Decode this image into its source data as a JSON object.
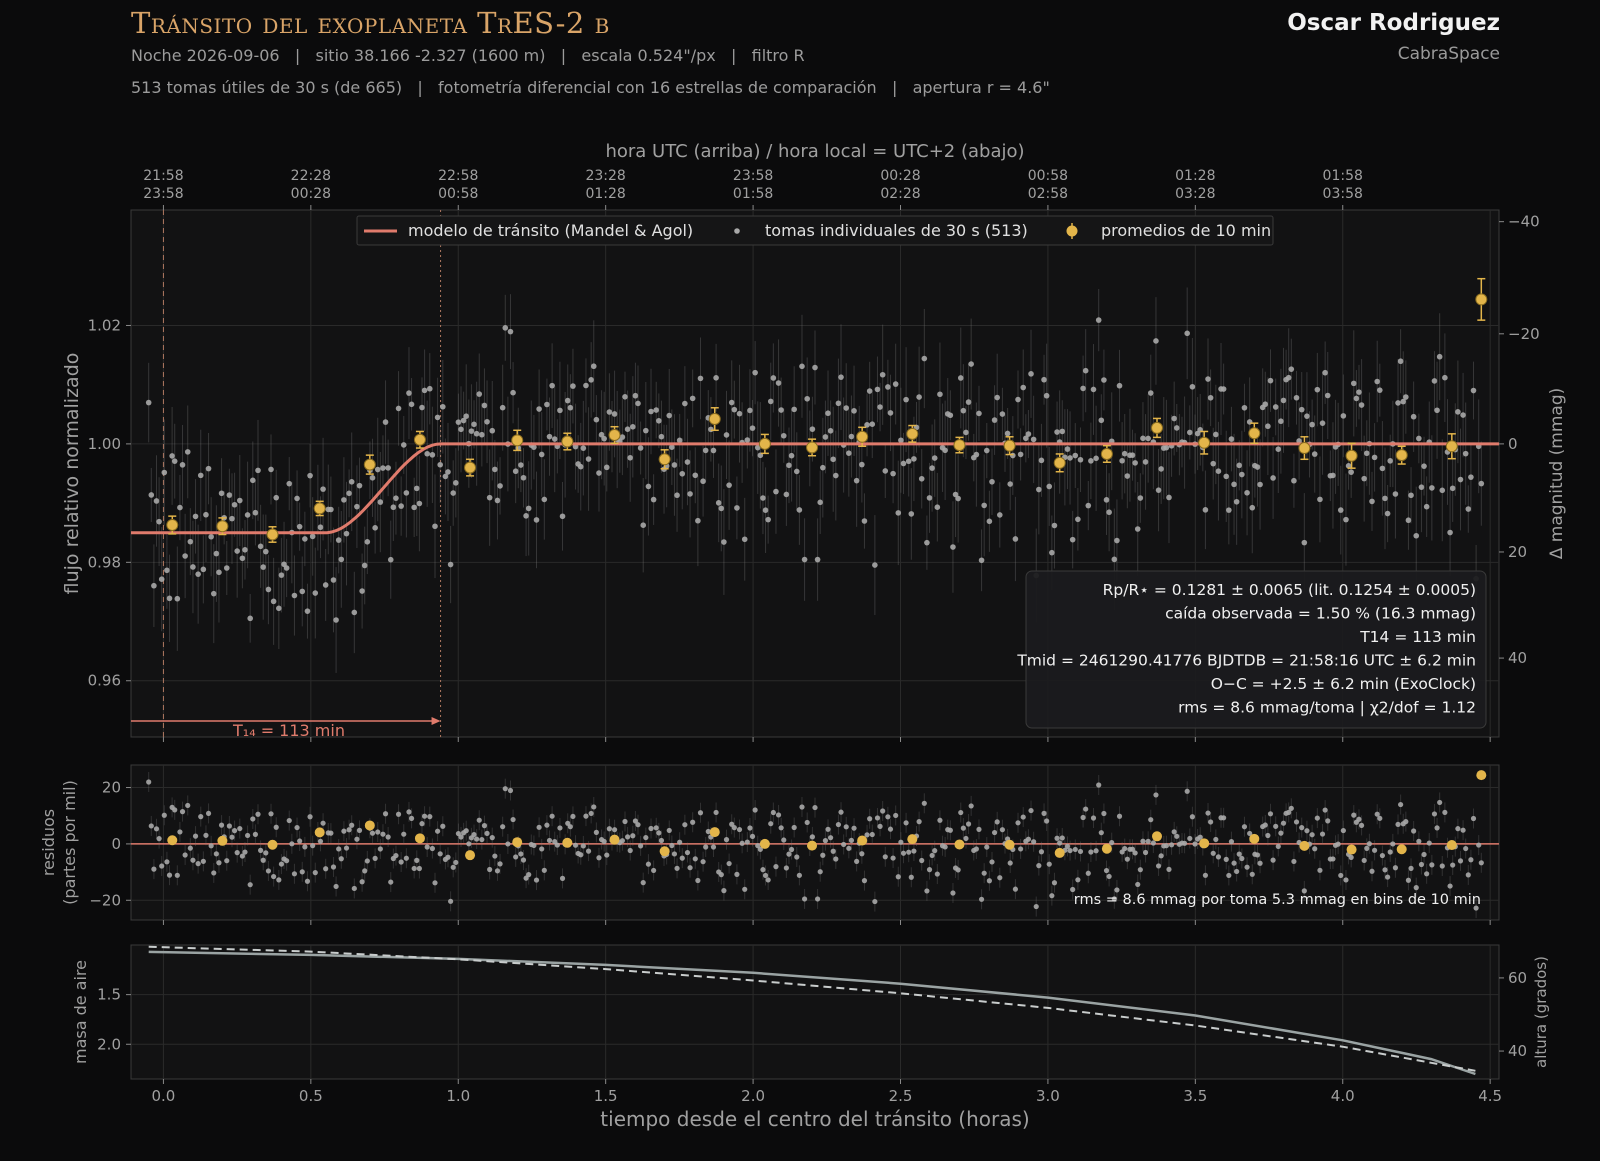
{
  "header": {
    "title": "Tránsito del exoplaneta TrES-2 b",
    "line1": "Noche 2026-09-06   |   sitio 38.166 -2.327 (1600 m)   |   escala 0.524\"/px   |   filtro R",
    "line2": "513 tomas útiles de 30 s (de 665)   |   fotometría diferencial con 16 estrellas de comparación   |   apertura r = 4.6\"",
    "author": "Oscar Rodriguez",
    "org": "CabraSpace"
  },
  "colors": {
    "model": "#e07b6c",
    "bins": "#e3b54a",
    "points": "#a8a8a8",
    "airmass": "#9aa3a3",
    "background": "#121213"
  },
  "chart_data": {
    "type": "scatter",
    "top_axis": {
      "title": "hora UTC (arriba)   /   hora local = UTC+2 (abajo)",
      "ticks": [
        {
          "x": 0.0,
          "utc": "21:58",
          "local": "23:58"
        },
        {
          "x": 0.5,
          "utc": "22:28",
          "local": "00:28"
        },
        {
          "x": 1.0,
          "utc": "22:58",
          "local": "00:58"
        },
        {
          "x": 1.5,
          "utc": "23:28",
          "local": "01:28"
        },
        {
          "x": 2.0,
          "utc": "23:58",
          "local": "01:58"
        },
        {
          "x": 2.5,
          "utc": "00:28",
          "local": "02:28"
        },
        {
          "x": 3.0,
          "utc": "00:58",
          "local": "02:58"
        },
        {
          "x": 3.5,
          "utc": "01:28",
          "local": "03:28"
        },
        {
          "x": 4.0,
          "utc": "01:58",
          "local": "03:58"
        }
      ]
    },
    "xlabel": "tiempo desde el centro del tránsito   (horas)",
    "xlim": [
      -0.11,
      4.53
    ],
    "xticks": [
      0.0,
      0.5,
      1.0,
      1.5,
      2.0,
      2.5,
      3.0,
      3.5,
      4.0,
      4.5
    ],
    "xtick_labels": [
      "0.0",
      "0.5",
      "1.0",
      "1.5",
      "2.0",
      "2.5",
      "3.0",
      "3.5",
      "4.0",
      "4.5"
    ],
    "main": {
      "ylabel": "flujo relativo normalizado",
      "ylabel_right": "Δ magnitud (mmag)",
      "ylim": [
        0.9505,
        1.0395
      ],
      "yticks": [
        0.96,
        0.98,
        1.0,
        1.02
      ],
      "ytick_labels": [
        "0.96",
        "0.98",
        "1.00",
        "1.02"
      ],
      "yticks_right": [
        -40,
        -20,
        0,
        20,
        40
      ],
      "ytick_labels_right": [
        "−40",
        "−20",
        "0",
        "20",
        "40"
      ],
      "legend": {
        "position": "top-center",
        "items": [
          "modelo de tránsito (Mandel & Agol)",
          "tomas individuales de 30 s (513)",
          "promedios de 10 min"
        ]
      },
      "model": {
        "depth": 0.015,
        "ingress_start": 0.55,
        "egress_end": 0.94
      },
      "t14_marker": {
        "x_start": -0.11,
        "x_end": 0.94,
        "label": "T₁₄ = 113 min"
      },
      "vline_mid": 0.0,
      "vline_end": 0.94,
      "bins": [
        {
          "x": 0.03,
          "y": 0.9863,
          "err": 0.0015
        },
        {
          "x": 0.2,
          "y": 0.9861,
          "err": 0.0014
        },
        {
          "x": 0.37,
          "y": 0.9847,
          "err": 0.0013
        },
        {
          "x": 0.53,
          "y": 0.9891,
          "err": 0.0012
        },
        {
          "x": 0.7,
          "y": 0.9965,
          "err": 0.0016
        },
        {
          "x": 0.87,
          "y": 1.0007,
          "err": 0.0014
        },
        {
          "x": 1.04,
          "y": 0.996,
          "err": 0.0014
        },
        {
          "x": 1.2,
          "y": 1.0006,
          "err": 0.0017
        },
        {
          "x": 1.37,
          "y": 1.0004,
          "err": 0.0014
        },
        {
          "x": 1.53,
          "y": 1.0015,
          "err": 0.0014
        },
        {
          "x": 1.7,
          "y": 0.9974,
          "err": 0.0016
        },
        {
          "x": 1.87,
          "y": 1.0042,
          "err": 0.0019
        },
        {
          "x": 2.04,
          "y": 1.0,
          "err": 0.0016
        },
        {
          "x": 2.2,
          "y": 0.9994,
          "err": 0.0014
        },
        {
          "x": 2.37,
          "y": 1.0012,
          "err": 0.0016
        },
        {
          "x": 2.54,
          "y": 1.0017,
          "err": 0.0014
        },
        {
          "x": 2.7,
          "y": 0.9998,
          "err": 0.0013
        },
        {
          "x": 2.87,
          "y": 0.9997,
          "err": 0.0015
        },
        {
          "x": 3.04,
          "y": 0.9968,
          "err": 0.0015
        },
        {
          "x": 3.2,
          "y": 0.9983,
          "err": 0.0014
        },
        {
          "x": 3.37,
          "y": 1.0027,
          "err": 0.0016
        },
        {
          "x": 3.53,
          "y": 1.0002,
          "err": 0.0019
        },
        {
          "x": 3.7,
          "y": 1.0018,
          "err": 0.0017
        },
        {
          "x": 3.87,
          "y": 0.9993,
          "err": 0.0019
        },
        {
          "x": 4.03,
          "y": 0.998,
          "err": 0.0021
        },
        {
          "x": 4.2,
          "y": 0.9981,
          "err": 0.0015
        },
        {
          "x": 4.37,
          "y": 0.9996,
          "err": 0.0021
        },
        {
          "x": 4.47,
          "y": 1.0244,
          "err": 0.0035
        }
      ],
      "stats_box": {
        "position": "bottom-right",
        "lines": [
          "Rp/R⋆ = 0.1281 ± 0.0065    (lit. 0.1254 ± 0.0005)",
          "caída observada = 1.50 %  (16.3 mmag)",
          "T14 = 113 min",
          "Tmid = 2461290.41776 BJDTDB = 21:58:16 UTC ± 6.2 min",
          "O−C = +2.5 ± 6.2 min  (ExoClock)",
          "rms = 8.6 mmag/toma   |   χ2/dof = 1.12"
        ]
      },
      "individual_points": {
        "n": 513,
        "rms_mmag": 8.6,
        "x_range": [
          -0.05,
          4.47
        ]
      }
    },
    "residuals": {
      "ylabel": "residuos\n(partes por mil)",
      "ylim": [
        -27,
        28
      ],
      "yticks": [
        -20,
        0,
        20
      ],
      "ytick_labels": [
        "−20",
        "0",
        "20"
      ],
      "annotation": "rms = 8.6 mmag por toma    5.3 mmag en bins de 10 min"
    },
    "airmass": {
      "ylabel": "masa de aire",
      "ylabel_right": "altura (grados)",
      "ylim": [
        1.0,
        2.35
      ],
      "yticks": [
        1.5,
        2.0
      ],
      "ytick_labels": [
        "1.5",
        "2.0"
      ],
      "yticks_right_labels": [
        "60",
        "40"
      ],
      "airmass_x": [
        -0.05,
        0.5,
        1.0,
        1.5,
        2.0,
        2.5,
        3.0,
        3.5,
        4.0,
        4.3,
        4.45
      ],
      "airmass_y": [
        1.07,
        1.1,
        1.14,
        1.2,
        1.28,
        1.39,
        1.53,
        1.71,
        1.96,
        2.15,
        2.3
      ],
      "altitude_x": [
        -0.05,
        0.5,
        1.0,
        1.5,
        2.0,
        2.5,
        3.0,
        3.5,
        4.0,
        4.3,
        4.45
      ],
      "altitude_deg": [
        68.5,
        67.2,
        65.1,
        62.4,
        59.3,
        55.8,
        51.8,
        47.0,
        41.2,
        36.8,
        34.6
      ]
    }
  }
}
